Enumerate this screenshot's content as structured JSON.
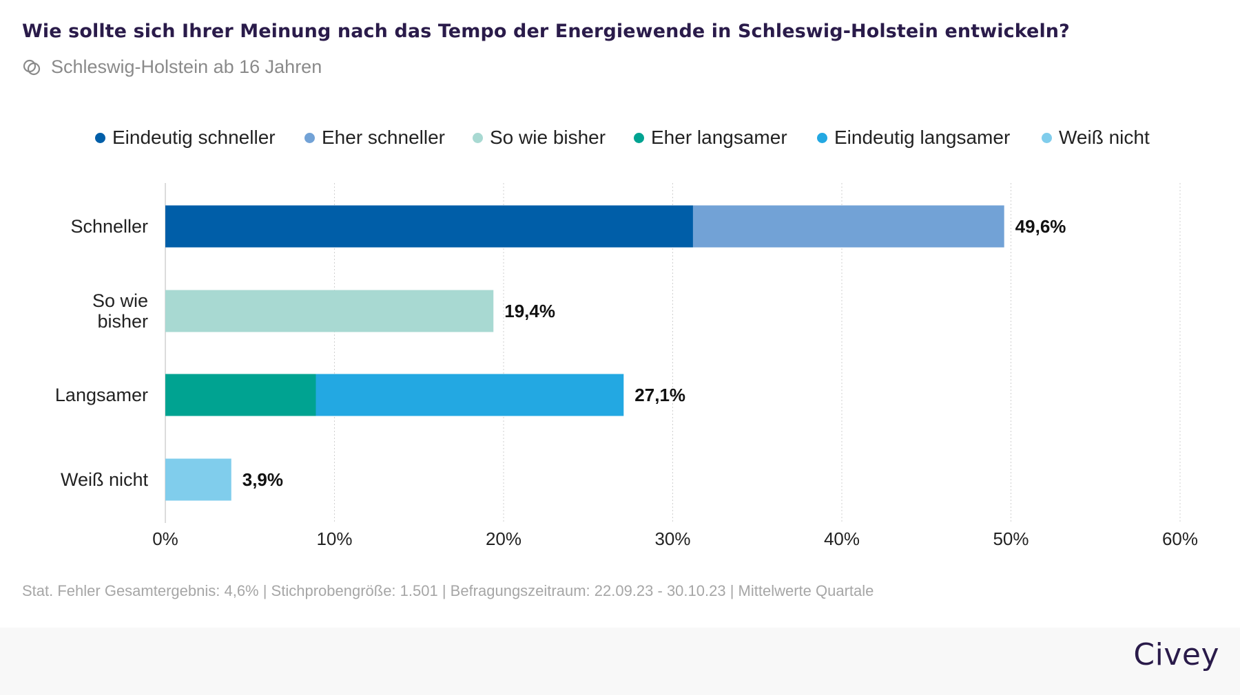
{
  "title": "Wie sollte sich Ihrer Meinung nach das Tempo der Energiewende in Schleswig-Holstein entwickeln?",
  "subtitle": "Schleswig-Holstein ab 16 Jahren",
  "subtitle_icon": "overlapping-circles-icon",
  "footnote": "Stat. Fehler Gesamtergebnis: 4,6% | Stichprobengröße: 1.501 | Befragungszeitraum: 22.09.23 - 30.10.23 | Mittelwerte Quartale",
  "brand": "Civey",
  "chart_data": {
    "type": "bar",
    "orientation": "horizontal",
    "stacked": true,
    "title": "",
    "xlabel": "",
    "ylabel": "",
    "xlim": [
      0,
      60
    ],
    "x_ticks": [
      0,
      10,
      20,
      30,
      40,
      50,
      60
    ],
    "x_tick_labels": [
      "0%",
      "10%",
      "20%",
      "30%",
      "40%",
      "50%",
      "60%"
    ],
    "grid": "vertical dotted",
    "legend_position": "top",
    "categories": [
      {
        "label": "Schneller",
        "total_label": "49,6%"
      },
      {
        "label": "So wie bisher",
        "total_label": "19,4%"
      },
      {
        "label": "Langsamer",
        "total_label": "27,1%"
      },
      {
        "label": "Weiß nicht",
        "total_label": "3,9%"
      }
    ],
    "series": [
      {
        "name": "Eindeutig schneller",
        "color": "#005ea8",
        "values": [
          31.2,
          0,
          0,
          0
        ]
      },
      {
        "name": "Eher schneller",
        "color": "#72a2d6",
        "values": [
          18.4,
          0,
          0,
          0
        ]
      },
      {
        "name": "So wie bisher",
        "color": "#a8d9d2",
        "values": [
          0,
          19.4,
          0,
          0
        ]
      },
      {
        "name": "Eher langsamer",
        "color": "#00a391",
        "values": [
          0,
          0,
          8.9,
          0
        ]
      },
      {
        "name": "Eindeutig langsamer",
        "color": "#23a8e2",
        "values": [
          0,
          0,
          18.2,
          0
        ]
      },
      {
        "name": "Weiß nicht",
        "color": "#80cdec",
        "values": [
          0,
          0,
          0,
          3.9
        ]
      }
    ]
  }
}
